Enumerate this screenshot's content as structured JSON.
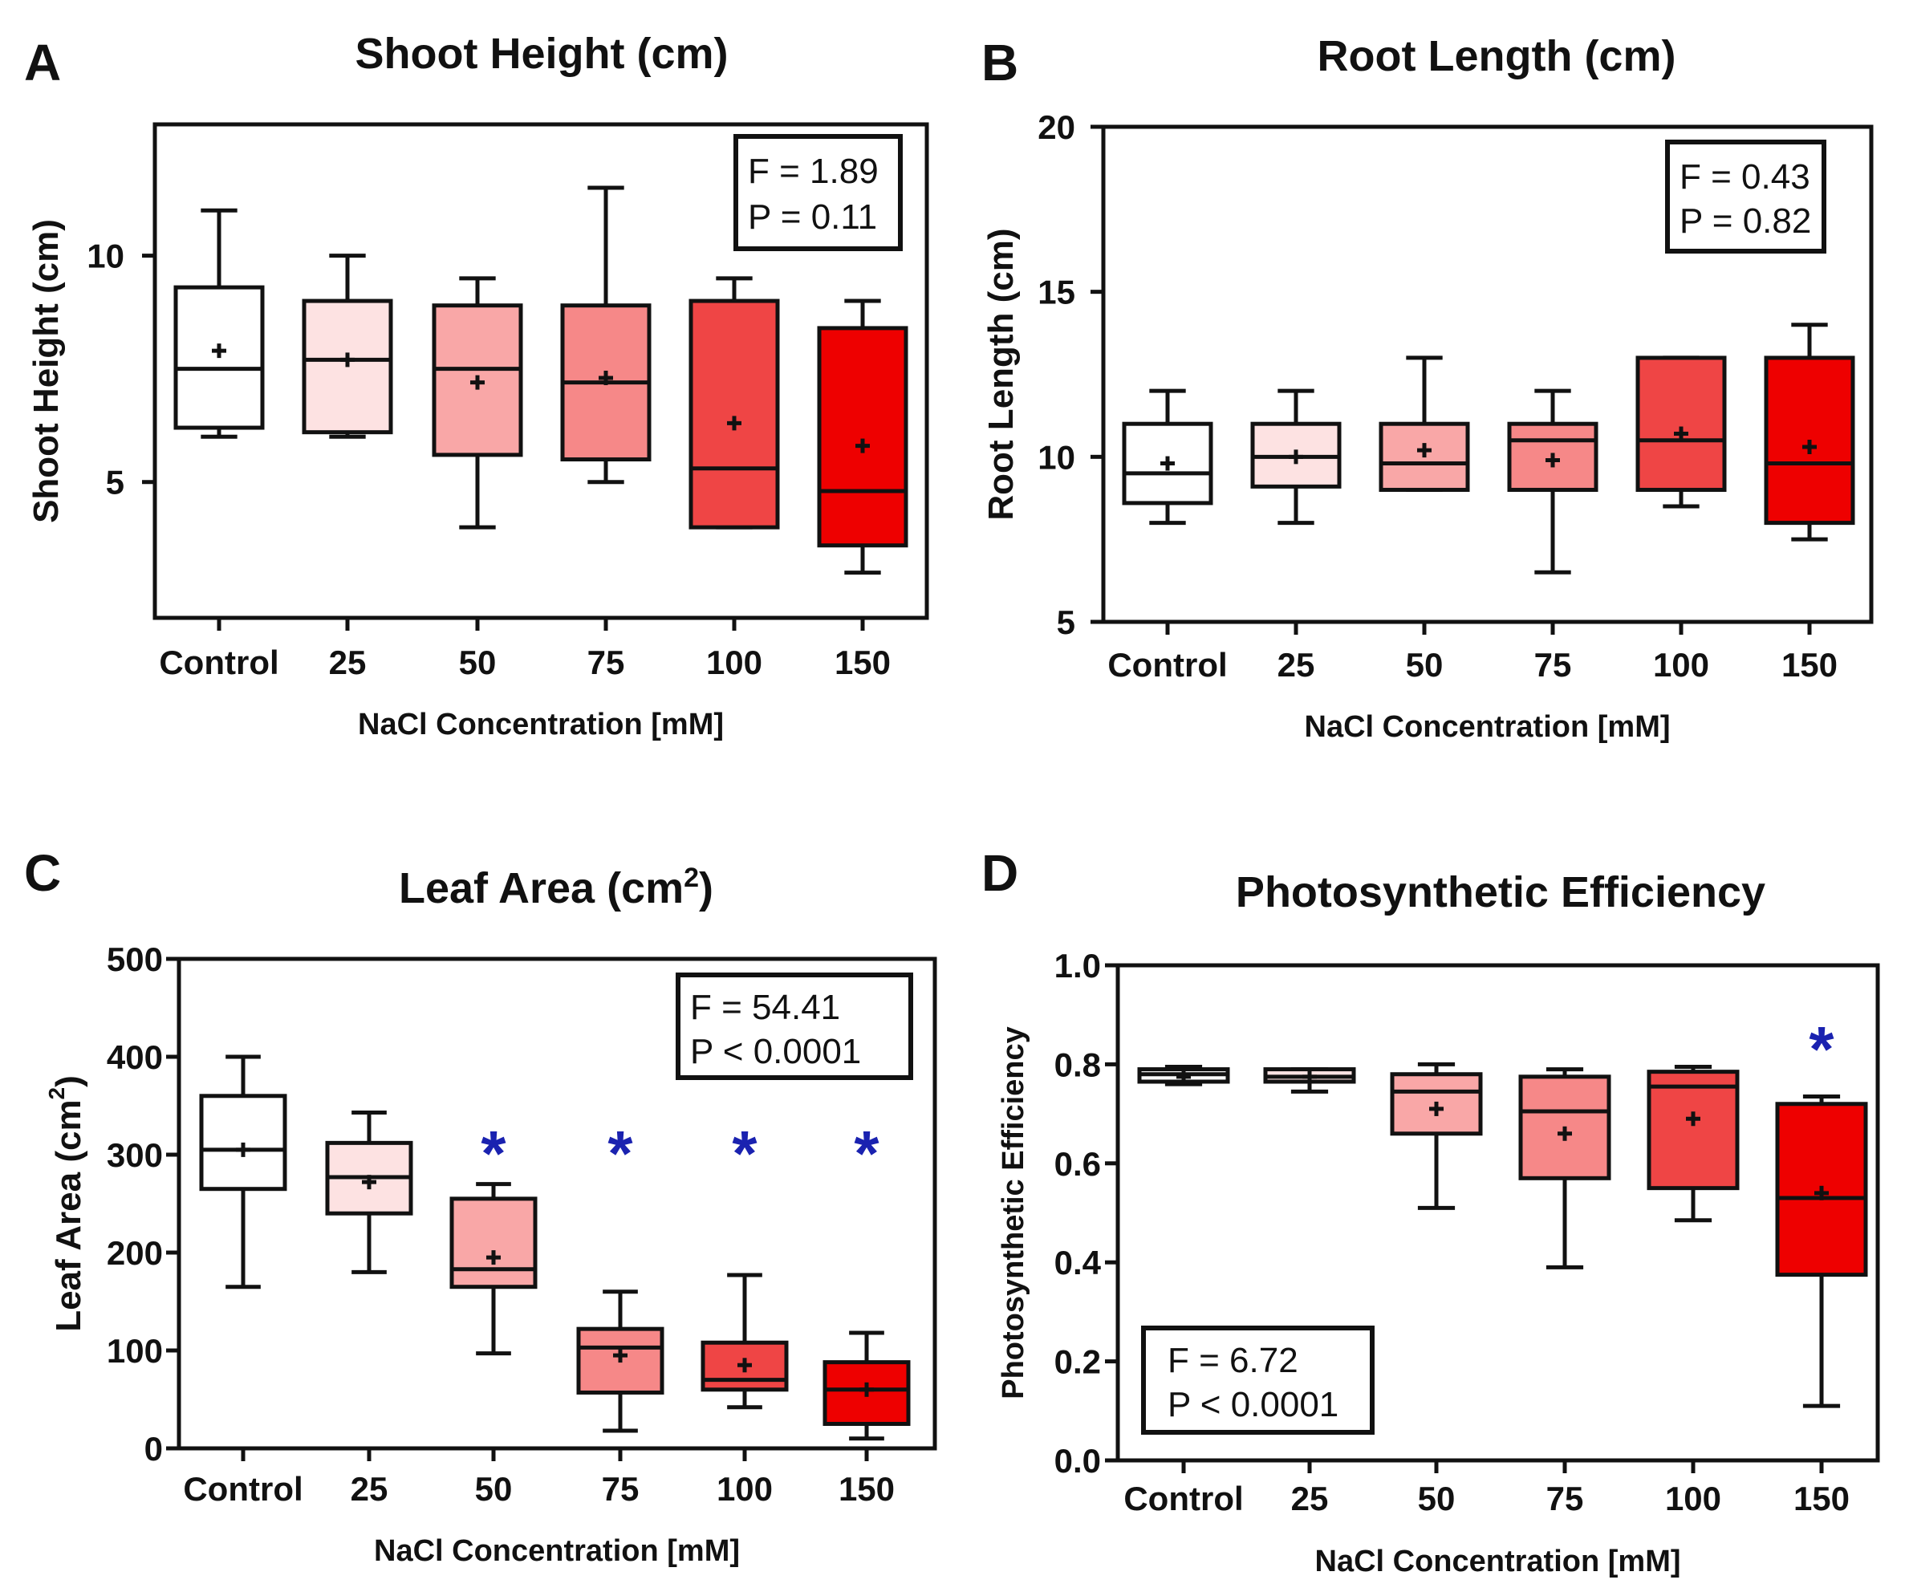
{
  "colors": {
    "Control": "#ffffff",
    "25": "#fde2e2",
    "50": "#f9a7a7",
    "75": "#f68888",
    "100": "#ef4545",
    "150": "#ee0000",
    "star": "#1a22b0"
  },
  "chart_data": [
    {
      "panel": "A",
      "type": "box",
      "title": "Shoot Height (cm)",
      "ylabel": "Shoot Height (cm)",
      "xlabel": "NaCl Concentration [mM]",
      "categories": [
        "Control",
        "25",
        "50",
        "75",
        "100",
        "150"
      ],
      "ylim": [
        2.0,
        12.9
      ],
      "yticks": [
        "5",
        "10"
      ],
      "ytick_values": [
        5,
        10
      ],
      "boxes": [
        {
          "min": 6.0,
          "q1": 6.2,
          "median": 7.5,
          "q3": 9.3,
          "max": 11.0,
          "mean": 7.9
        },
        {
          "min": 6.0,
          "q1": 6.1,
          "median": 7.7,
          "q3": 9.0,
          "max": 10.0,
          "mean": 7.7
        },
        {
          "min": 4.0,
          "q1": 5.6,
          "median": 7.5,
          "q3": 8.9,
          "max": 9.5,
          "mean": 7.2
        },
        {
          "min": 5.0,
          "q1": 5.5,
          "median": 7.2,
          "q3": 8.9,
          "max": 11.5,
          "mean": 7.3
        },
        {
          "min": 4.0,
          "q1": 4.0,
          "median": 5.3,
          "q3": 9.0,
          "max": 9.5,
          "mean": 6.3
        },
        {
          "min": 3.0,
          "q1": 3.6,
          "median": 4.8,
          "q3": 8.4,
          "max": 9.0,
          "mean": 5.8
        }
      ],
      "stats": [
        "F = 1.89",
        "P = 0.11"
      ],
      "significant": []
    },
    {
      "panel": "B",
      "type": "box",
      "title": "Root Length (cm)",
      "ylabel": "Root Length (cm)",
      "xlabel": "NaCl Concentration [mM]",
      "categories": [
        "Control",
        "25",
        "50",
        "75",
        "100",
        "150"
      ],
      "ylim": [
        5,
        20
      ],
      "yticks": [
        "5",
        "10",
        "15",
        "20"
      ],
      "ytick_values": [
        5,
        10,
        15,
        20
      ],
      "boxes": [
        {
          "min": 8.0,
          "q1": 8.6,
          "median": 9.5,
          "q3": 11.0,
          "max": 12.0,
          "mean": 9.8
        },
        {
          "min": 8.0,
          "q1": 9.1,
          "median": 10.0,
          "q3": 11.0,
          "max": 12.0,
          "mean": 10.0
        },
        {
          "min": 9.0,
          "q1": 9.0,
          "median": 9.8,
          "q3": 11.0,
          "max": 13.0,
          "mean": 10.2
        },
        {
          "min": 6.5,
          "q1": 9.0,
          "median": 10.5,
          "q3": 11.0,
          "max": 12.0,
          "mean": 9.9
        },
        {
          "min": 8.5,
          "q1": 9.0,
          "median": 10.5,
          "q3": 13.0,
          "max": 13.0,
          "mean": 10.7
        },
        {
          "min": 7.5,
          "q1": 8.0,
          "median": 9.8,
          "q3": 13.0,
          "max": 14.0,
          "mean": 10.3
        }
      ],
      "stats": [
        "F = 0.43",
        "P = 0.82"
      ],
      "significant": []
    },
    {
      "panel": "C",
      "type": "box",
      "title": "Leaf Area (cm",
      "title_sup": "2",
      "title_end": ")",
      "ylabel": "Leaf Area (cm",
      "ylabel_sup": "2",
      "ylabel_end": ")",
      "xlabel": "NaCl Concentration [mM]",
      "categories": [
        "Control",
        "25",
        "50",
        "75",
        "100",
        "150"
      ],
      "ylim": [
        0,
        500
      ],
      "yticks": [
        "0",
        "100",
        "200",
        "300",
        "400",
        "500"
      ],
      "ytick_values": [
        0,
        100,
        200,
        300,
        400,
        500
      ],
      "boxes": [
        {
          "min": 165,
          "q1": 265,
          "median": 305,
          "q3": 360,
          "max": 400,
          "mean": 305
        },
        {
          "min": 180,
          "q1": 240,
          "median": 277,
          "q3": 312,
          "max": 343,
          "mean": 272
        },
        {
          "min": 97,
          "q1": 165,
          "median": 183,
          "q3": 255,
          "max": 270,
          "mean": 195
        },
        {
          "min": 18,
          "q1": 57,
          "median": 103,
          "q3": 122,
          "max": 160,
          "mean": 95
        },
        {
          "min": 42,
          "q1": 60,
          "median": 70,
          "q3": 108,
          "max": 177,
          "mean": 85
        },
        {
          "min": 10,
          "q1": 25,
          "median": 60,
          "q3": 88,
          "max": 118,
          "mean": 60
        }
      ],
      "stats": [
        "F = 54.41",
        "P < 0.0001"
      ],
      "significant": [
        "50",
        "75",
        "100",
        "150"
      ],
      "significance_marker": "*"
    },
    {
      "panel": "D",
      "type": "box",
      "title": "Photosynthetic Efficiency",
      "ylabel": "Photosynthetic Efficiency",
      "xlabel": "NaCl Concentration [mM]",
      "categories": [
        "Control",
        "25",
        "50",
        "75",
        "100",
        "150"
      ],
      "ylim": [
        0.0,
        1.0
      ],
      "yticks": [
        "0.0",
        "0.2",
        "0.4",
        "0.6",
        "0.8",
        "1.0"
      ],
      "ytick_values": [
        0.0,
        0.2,
        0.4,
        0.6,
        0.8,
        1.0
      ],
      "boxes": [
        {
          "min": 0.76,
          "q1": 0.765,
          "median": 0.78,
          "q3": 0.79,
          "max": 0.795,
          "mean": 0.775
        },
        {
          "min": 0.745,
          "q1": 0.765,
          "median": 0.775,
          "q3": 0.79,
          "max": 0.79,
          "mean": 0.775
        },
        {
          "min": 0.51,
          "q1": 0.66,
          "median": 0.745,
          "q3": 0.78,
          "max": 0.8,
          "mean": 0.71
        },
        {
          "min": 0.39,
          "q1": 0.57,
          "median": 0.705,
          "q3": 0.775,
          "max": 0.79,
          "mean": 0.66
        },
        {
          "min": 0.485,
          "q1": 0.55,
          "median": 0.755,
          "q3": 0.785,
          "max": 0.795,
          "mean": 0.69
        },
        {
          "min": 0.11,
          "q1": 0.375,
          "median": 0.53,
          "q3": 0.72,
          "max": 0.735,
          "mean": 0.54
        }
      ],
      "stats": [
        "F = 6.72",
        "P < 0.0001"
      ],
      "significant": [
        "150"
      ],
      "significance_marker": "*"
    }
  ]
}
